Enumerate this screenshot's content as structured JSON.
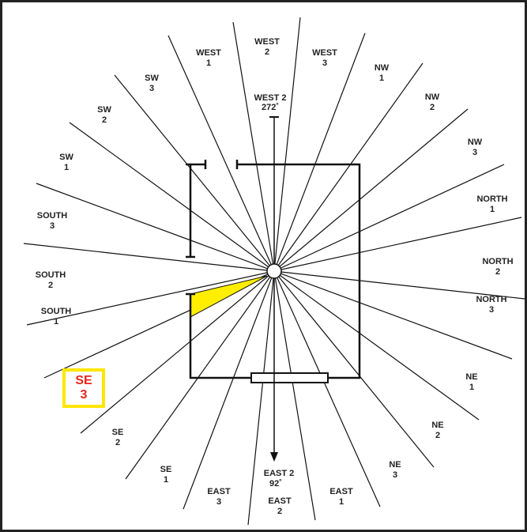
{
  "sectors": [
    {
      "line1": "WEST",
      "line2": "1"
    },
    {
      "line1": "WEST",
      "line2": "2"
    },
    {
      "line1": "WEST",
      "line2": "3"
    },
    {
      "line1": "NW",
      "line2": "1"
    },
    {
      "line1": "NW",
      "line2": "2"
    },
    {
      "line1": "NW",
      "line2": "3"
    },
    {
      "line1": "NORTH",
      "line2": "1"
    },
    {
      "line1": "NORTH",
      "line2": "2"
    },
    {
      "line1": "NORTH",
      "line2": "3"
    },
    {
      "line1": "NE",
      "line2": "1"
    },
    {
      "line1": "NE",
      "line2": "2"
    },
    {
      "line1": "NE",
      "line2": "3"
    },
    {
      "line1": "EAST",
      "line2": "1"
    },
    {
      "line1": "EAST",
      "line2": "2"
    },
    {
      "line1": "EAST",
      "line2": "3"
    },
    {
      "line1": "SE",
      "line2": "1"
    },
    {
      "line1": "SE",
      "line2": "2"
    },
    {
      "line1": "SE",
      "line2": "3"
    },
    {
      "line1": "SOUTH",
      "line2": "1"
    },
    {
      "line1": "SOUTH",
      "line2": "2"
    },
    {
      "line1": "SOUTH",
      "line2": "3"
    },
    {
      "line1": "SW",
      "line2": "1"
    },
    {
      "line1": "SW",
      "line2": "2"
    },
    {
      "line1": "SW",
      "line2": "3"
    }
  ],
  "heading_top": {
    "line1": "WEST 2",
    "line2": "272˚"
  },
  "heading_bottom": {
    "line1": "EAST 2",
    "line2": "92˚"
  }
}
